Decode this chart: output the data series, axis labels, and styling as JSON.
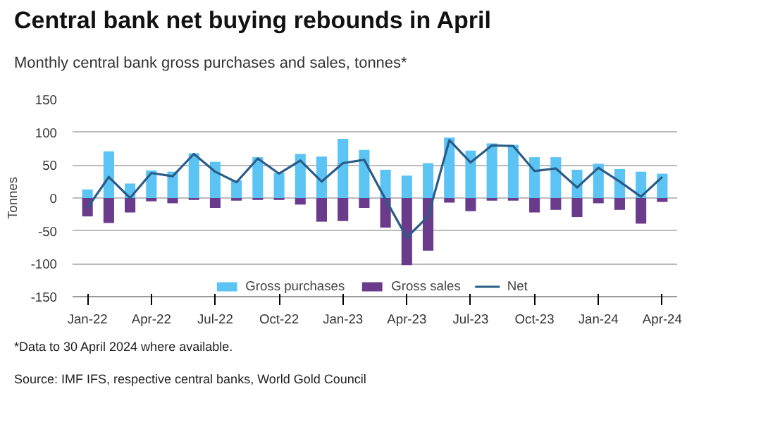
{
  "chart_data": {
    "type": "bar",
    "title": "Central bank net buying rebounds in April",
    "subtitle": "Monthly central bank gross purchases and sales, tonnes*",
    "ylabel": "Tonnes",
    "categories": [
      "Jan-22",
      null,
      null,
      "Apr-22",
      null,
      null,
      "Jul-22",
      null,
      null,
      "Oct-22",
      null,
      null,
      "Jan-23",
      null,
      null,
      "Apr-23",
      null,
      null,
      "Jul-23",
      null,
      null,
      "Oct-23",
      null,
      null,
      "Jan-24",
      null,
      null,
      "Apr-24"
    ],
    "series": [
      {
        "name": "Gross purchases",
        "color": "#5bc4f5",
        "values": [
          13,
          71,
          22,
          42,
          40,
          68,
          55,
          27,
          62,
          38,
          67,
          63,
          90,
          73,
          43,
          34,
          53,
          92,
          72,
          83,
          81,
          62,
          62,
          43,
          52,
          44,
          40,
          37
        ]
      },
      {
        "name": "Gross sales",
        "color": "#6b3b8b",
        "values": [
          -28,
          -38,
          -22,
          -5,
          -8,
          -3,
          -15,
          -4,
          -3,
          -3,
          -10,
          -36,
          -35,
          -15,
          -45,
          -102,
          -80,
          -7,
          -20,
          -4,
          -4,
          -22,
          -18,
          -29,
          -8,
          -18,
          -39,
          -6
        ]
      },
      {
        "name": "Net",
        "type": "line",
        "color": "#2b5c87",
        "values": [
          -15,
          32,
          0,
          38,
          33,
          67,
          40,
          24,
          60,
          37,
          57,
          25,
          53,
          58,
          -2,
          -60,
          -28,
          88,
          54,
          80,
          79,
          41,
          45,
          16,
          46,
          25,
          2,
          32
        ]
      }
    ],
    "stacked": true,
    "ylim": [
      -150,
      150
    ],
    "yticks": [
      -150,
      -100,
      -50,
      0,
      50,
      100,
      150
    ],
    "grid": "y",
    "legend": "bottom",
    "annotations": [
      "*Data to 30 April 2024 where available.",
      "Source: IMF IFS, respective central banks, World Gold Council"
    ]
  }
}
